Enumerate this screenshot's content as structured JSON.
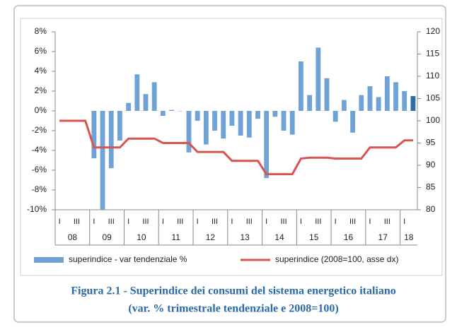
{
  "chart_data": {
    "type": "bar-line",
    "categories": [
      "I",
      null,
      "III",
      null,
      "I",
      null,
      "III",
      null,
      "I",
      null,
      "III",
      null,
      "I",
      null,
      "III",
      null,
      "I",
      null,
      "III",
      null,
      "I",
      null,
      "III",
      null,
      "I",
      null,
      "III",
      null,
      "I",
      null,
      "III",
      null,
      "I",
      null,
      "III",
      null,
      "I",
      null,
      "III",
      null,
      "I",
      null
    ],
    "years": [
      "08",
      "09",
      "10",
      "11",
      "12",
      "13",
      "14",
      "15",
      "16",
      "17",
      "18"
    ],
    "series": [
      {
        "name": "superindice - var tendenziale %",
        "type": "bar",
        "color": "#6fa3d6",
        "last_color": "#2e6ea6",
        "values": [
          null,
          null,
          null,
          null,
          -4.8,
          -10,
          -5.8,
          -3.0,
          0.8,
          3.7,
          1.7,
          2.9,
          -0.5,
          0.1,
          0,
          -4.2,
          -1.0,
          -3.4,
          -2.0,
          -2.8,
          -1.5,
          -2.5,
          -2.7,
          -0.8,
          -6.8,
          -0.6,
          -2.0,
          -2.4,
          5.0,
          1.6,
          6.4,
          3.3,
          -1.1,
          1.1,
          -2.2,
          1.6,
          2.5,
          1.4,
          3.5,
          2.9,
          2.0,
          1.5
        ]
      },
      {
        "name": "superindice (2008=100, asse dx)",
        "type": "line",
        "axis": "y2",
        "color": "#d9534f",
        "values": [
          100,
          100,
          100,
          100,
          94,
          94,
          94,
          94,
          96,
          96,
          96,
          96,
          95,
          95,
          95,
          95,
          93,
          93,
          93,
          93,
          91,
          91,
          91,
          91,
          88,
          88,
          88,
          88,
          91.5,
          91.7,
          91.7,
          91.7,
          91.5,
          91.5,
          91.5,
          91.5,
          94,
          94,
          94,
          94,
          95.6,
          95.6
        ]
      }
    ],
    "ylim": [
      -10,
      8
    ],
    "yticks": [
      {
        "value": -10,
        "label": "-10%"
      },
      {
        "value": -8,
        "label": "-8%"
      },
      {
        "value": -6,
        "label": "-6%"
      },
      {
        "value": -4,
        "label": "-4%"
      },
      {
        "value": -2,
        "label": "-2%"
      },
      {
        "value": 0,
        "label": "0%"
      },
      {
        "value": 2,
        "label": "2%"
      },
      {
        "value": 4,
        "label": "4%"
      },
      {
        "value": 6,
        "label": "6%"
      },
      {
        "value": 8,
        "label": "8%"
      }
    ],
    "y2lim": [
      80,
      120
    ],
    "y2ticks": [
      80,
      85,
      90,
      95,
      100,
      105,
      110,
      115,
      120
    ],
    "caption": [
      "Figura 2.1 - Superindice dei consumi del sistema energetico italiano",
      "(var. % trimestrale tendenziale e 2008=100)"
    ]
  }
}
